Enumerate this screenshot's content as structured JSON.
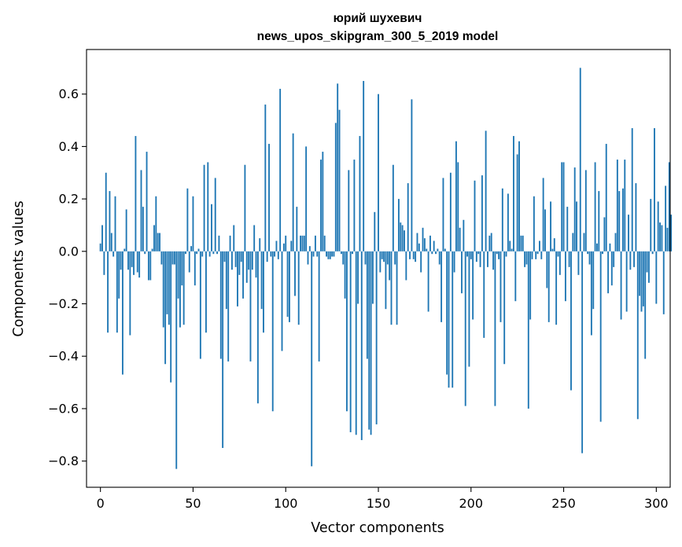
{
  "chart_data": {
    "type": "bar",
    "title_line1": "юрий шухевич",
    "title_line2": "news_upos_skipgram_300_5_2019 model",
    "xlabel": "Vector components",
    "ylabel": "Components values",
    "xlim": [
      -7.5,
      307.5
    ],
    "ylim": [
      -0.9,
      0.77
    ],
    "xticks": [
      0,
      50,
      100,
      150,
      200,
      250,
      300
    ],
    "xtick_labels": [
      "0",
      "50",
      "100",
      "150",
      "200",
      "250",
      "300"
    ],
    "yticks": [
      -0.8,
      -0.6,
      -0.4,
      -0.2,
      0.0,
      0.2,
      0.4,
      0.6
    ],
    "ytick_labels": [
      "−0.8",
      "−0.6",
      "−0.4",
      "−0.2",
      "0.0",
      "0.2",
      "0.4",
      "0.6"
    ],
    "bar_color": "#1f77b4",
    "grid": false,
    "values": [
      0.03,
      0.1,
      -0.09,
      0.3,
      -0.31,
      0.23,
      0.07,
      -0.02,
      0.21,
      -0.31,
      -0.18,
      -0.07,
      -0.47,
      0.01,
      0.16,
      -0.07,
      -0.32,
      -0.06,
      -0.09,
      0.44,
      -0.08,
      -0.1,
      0.31,
      0.17,
      -0.01,
      0.38,
      -0.11,
      -0.11,
      0.01,
      0.1,
      0.21,
      0.07,
      0.07,
      -0.05,
      -0.29,
      -0.43,
      -0.24,
      -0.28,
      -0.5,
      -0.05,
      -0.05,
      -0.83,
      -0.18,
      -0.29,
      -0.13,
      -0.28,
      -0.01,
      0.24,
      -0.08,
      0.02,
      0.21,
      -0.13,
      -0.01,
      0.01,
      -0.41,
      -0.02,
      0.33,
      -0.31,
      0.34,
      -0.02,
      0.18,
      -0.01,
      0.28,
      -0.01,
      0.06,
      -0.41,
      -0.75,
      -0.04,
      -0.22,
      -0.42,
      0.06,
      -0.07,
      0.1,
      -0.06,
      -0.21,
      -0.09,
      -0.04,
      -0.18,
      0.33,
      -0.12,
      -0.07,
      -0.42,
      -0.07,
      0.1,
      -0.1,
      -0.58,
      0.05,
      -0.22,
      -0.31,
      0.56,
      -0.04,
      0.41,
      -0.02,
      -0.61,
      -0.02,
      0.04,
      -0.03,
      0.62,
      -0.38,
      0.03,
      0.06,
      -0.25,
      -0.27,
      0.04,
      0.45,
      -0.17,
      0.17,
      -0.28,
      0.06,
      0.06,
      0.06,
      0.4,
      -0.05,
      0.02,
      -0.82,
      -0.02,
      0.06,
      -0.02,
      -0.42,
      0.35,
      0.38,
      0.06,
      -0.02,
      -0.03,
      -0.03,
      -0.02,
      -0.02,
      0.49,
      0.64,
      0.54,
      -0.01,
      -0.05,
      -0.18,
      -0.61,
      0.31,
      -0.69,
      -0.01,
      0.35,
      -0.7,
      -0.2,
      0.44,
      -0.72,
      0.65,
      -0.05,
      -0.41,
      -0.68,
      -0.7,
      -0.2,
      0.15,
      -0.66,
      0.6,
      -0.08,
      -0.03,
      -0.04,
      -0.22,
      -0.05,
      -0.11,
      -0.28,
      0.33,
      -0.05,
      -0.28,
      0.2,
      0.11,
      0.1,
      0.08,
      -0.11,
      0.26,
      -0.03,
      0.58,
      -0.03,
      -0.04,
      0.07,
      0.03,
      -0.08,
      0.09,
      0.05,
      0.01,
      -0.23,
      0.06,
      -0.01,
      0.04,
      -0.01,
      0.01,
      -0.05,
      -0.27,
      0.28,
      0.01,
      -0.47,
      -0.52,
      0.3,
      -0.52,
      -0.08,
      0.42,
      0.34,
      0.09,
      -0.16,
      0.12,
      -0.59,
      -0.02,
      -0.44,
      -0.03,
      -0.26,
      0.27,
      -0.04,
      -0.01,
      -0.06,
      0.29,
      -0.33,
      0.46,
      -0.06,
      0.06,
      0.07,
      -0.07,
      -0.59,
      -0.01,
      -0.03,
      -0.27,
      0.24,
      -0.43,
      -0.02,
      0.22,
      0.04,
      0.01,
      0.44,
      -0.19,
      0.37,
      0.42,
      0.06,
      0.06,
      -0.06,
      -0.05,
      -0.6,
      -0.26,
      -0.03,
      0.21,
      -0.03,
      -0.01,
      0.04,
      -0.03,
      0.28,
      0.16,
      -0.14,
      -0.27,
      0.19,
      0.01,
      0.05,
      -0.28,
      -0.02,
      -0.09,
      0.34,
      0.34,
      -0.19,
      0.17,
      -0.06,
      -0.53,
      0.07,
      0.32,
      0.19,
      -0.09,
      0.7,
      -0.77,
      0.07,
      0.31,
      -0.01,
      -0.05,
      -0.32,
      -0.22,
      0.34,
      0.03,
      0.23,
      -0.65,
      -0.01,
      0.13,
      0.41,
      -0.16,
      0.03,
      -0.13,
      -0.06,
      0.07,
      0.35,
      0.23,
      -0.26,
      0.24,
      0.35,
      -0.23,
      0.14,
      -0.07,
      0.47,
      -0.06,
      0.26,
      -0.64,
      -0.17,
      -0.23,
      -0.21,
      -0.41,
      -0.08,
      -0.12,
      0.2,
      -0.01,
      0.47,
      -0.2,
      0.19,
      0.11,
      0.1,
      -0.24,
      0.25,
      0.09,
      0.34,
      0.14
    ]
  }
}
